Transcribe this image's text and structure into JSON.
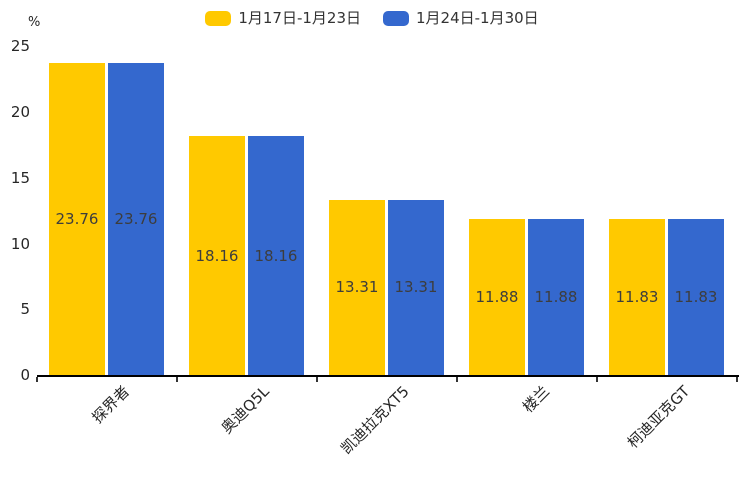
{
  "chart_data": {
    "type": "bar",
    "title": "",
    "ylabel": "%",
    "xlabel": "",
    "categories": [
      "探界者",
      "奥迪Q5L",
      "凯迪拉克XT5",
      "楼兰",
      "柯迪亚克GT"
    ],
    "series": [
      {
        "name": "1月17日-1月23日",
        "color": "#FFC900",
        "values": [
          23.76,
          18.16,
          13.31,
          11.88,
          11.83
        ]
      },
      {
        "name": "1月24日-1月30日",
        "color": "#3468CE",
        "values": [
          23.76,
          18.16,
          13.31,
          11.88,
          11.83
        ]
      }
    ],
    "value_label_format": "2-decimals",
    "ylim": [
      0,
      25
    ],
    "yticks": [
      0,
      5,
      10,
      15,
      20,
      25
    ],
    "grid": false,
    "legend_position": "top",
    "bar_label_position": "inside-center",
    "xtick_label_rotation_deg": 45
  },
  "colors": {
    "background": "#ffffff",
    "axis_line": "#000000",
    "tick_text": "#262626",
    "value_label_text": "#3d3d3d",
    "legend_text": "#333333"
  }
}
